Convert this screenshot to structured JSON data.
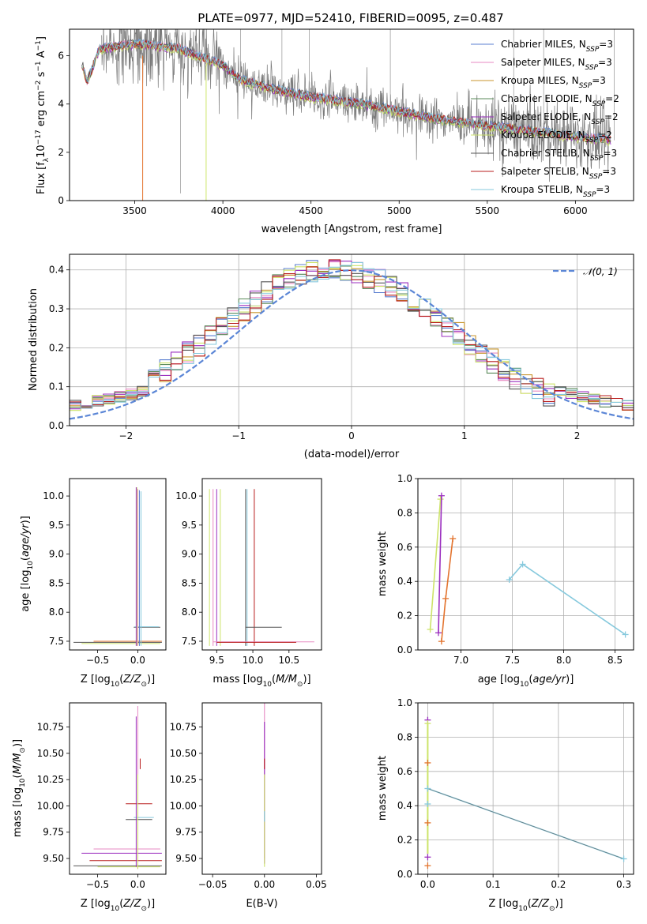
{
  "title": "PLATE=0977, MJD=52410, FIBERID=0095, z=0.487",
  "colors": {
    "Chabrier MILES": "#5b7fd0",
    "Salpeter MILES": "#e78ac3",
    "Kroupa MILES": "#c8962e",
    "Chabrier ELODIE": "#5a8a5a",
    "Salpeter ELODIE": "#9b2fbf",
    "Kroupa ELODIE": "#cde46a",
    "Chabrier STELIB": "#555555",
    "Salpeter STELIB": "#b81c1c",
    "Kroupa STELIB": "#86c9dd",
    "normal": "#5b86d6",
    "orange": "#e3742f"
  },
  "chart_data": [
    {
      "type": "line",
      "panel": "spectrum",
      "xlabel": "wavelength [Angstrom, rest frame]",
      "ylabel": "Flux [f_λ 10^-17 erg cm^-2 s^-1 A^-1]",
      "xlim": [
        3130,
        6330
      ],
      "ylim": [
        0,
        7.1
      ],
      "xticks": [
        3500,
        4000,
        4500,
        5000,
        5500,
        6000
      ],
      "yticks": [
        0,
        2,
        4,
        6
      ],
      "legend_position": "top-right",
      "series": [
        {
          "name": "Chabrier MILES, N_SSP=3"
        },
        {
          "name": "Salpeter MILES, N_SSP=3"
        },
        {
          "name": "Kroupa MILES, N_SSP=3"
        },
        {
          "name": "Chabrier ELODIE, N_SSP=2"
        },
        {
          "name": "Salpeter ELODIE, N_SSP=2"
        },
        {
          "name": "Kroupa ELODIE, N_SSP=2"
        },
        {
          "name": "Chabrier STELIB, N_SSP=3"
        },
        {
          "name": "Salpeter STELIB, N_SSP=3"
        },
        {
          "name": "Kroupa STELIB, N_SSP=3"
        }
      ],
      "continuum_anchors": {
        "x": [
          3200,
          3230,
          3300,
          3500,
          3750,
          4000,
          4100,
          4300,
          4500,
          4800,
          5000,
          5200,
          5500,
          5800,
          6000,
          6200
        ],
        "y": [
          5.7,
          4.9,
          6.3,
          6.5,
          6.3,
          5.6,
          5.0,
          4.6,
          4.3,
          4.0,
          3.7,
          3.4,
          3.1,
          2.85,
          2.65,
          2.5
        ]
      }
    },
    {
      "type": "line",
      "panel": "residuals",
      "xlabel": "(data-model)/error",
      "ylabel": "Normed distribution",
      "xlim": [
        -2.5,
        2.5
      ],
      "ylim": [
        0,
        0.44
      ],
      "xticks": [
        -2,
        -1,
        0,
        1,
        2
      ],
      "yticks": [
        0.0,
        0.1,
        0.2,
        0.3,
        0.4
      ],
      "legend": "𝒩(0, 1)",
      "legend_position": "top-right",
      "grid": true
    },
    {
      "type": "scatter",
      "panel": "age-metallicity",
      "xlabel": "Z [log10(Z/Z⊙)]",
      "ylabel": "age [log10(age/yr)]",
      "xlim": [
        -0.85,
        0.35
      ],
      "ylim": [
        7.35,
        10.3
      ],
      "xticks": [
        -0.5,
        0.0
      ],
      "yticks": [
        7.5,
        8.0,
        8.5,
        9.0,
        9.5,
        10.0
      ]
    },
    {
      "type": "scatter",
      "panel": "age-mass",
      "xlabel": "mass [log10(M/M⊙)]",
      "xlim": [
        9.3,
        10.95
      ],
      "ylim": [
        7.35,
        10.3
      ],
      "xticks": [
        9.5,
        10.0,
        10.5
      ],
      "yticks": [
        7.5,
        8.0,
        8.5,
        9.0,
        9.5,
        10.0
      ]
    },
    {
      "type": "line",
      "panel": "massweight-age",
      "xlabel": "age [log10(age/yr)]",
      "ylabel": "mass weight",
      "xlim": [
        6.58,
        8.68
      ],
      "ylim": [
        0,
        1
      ],
      "xticks": [
        7.0,
        7.5,
        8.0,
        8.5
      ],
      "yticks": [
        0.0,
        0.2,
        0.4,
        0.6,
        0.8,
        1.0
      ],
      "grid": true,
      "series": [
        {
          "x": [
            6.7,
            6.8
          ],
          "y": [
            0.12,
            0.88
          ]
        },
        {
          "x": [
            6.78,
            6.81
          ],
          "y": [
            0.1,
            0.9
          ]
        },
        {
          "x": [
            6.81,
            6.85,
            6.92
          ],
          "y": [
            0.05,
            0.3,
            0.65
          ]
        },
        {
          "x": [
            7.47,
            7.6,
            8.6
          ],
          "y": [
            0.41,
            0.5,
            0.09
          ]
        }
      ]
    },
    {
      "type": "scatter",
      "panel": "mass-metallicity",
      "xlabel": "Z [log10(Z/Z⊙)]",
      "ylabel": "mass [log10(M/M⊙)]",
      "xlim": [
        -0.85,
        0.35
      ],
      "ylim": [
        9.35,
        10.98
      ],
      "xticks": [
        -0.5,
        0.0
      ],
      "yticks": [
        9.5,
        9.75,
        10.0,
        10.25,
        10.5,
        10.75
      ]
    },
    {
      "type": "scatter",
      "panel": "mass-ebv",
      "xlabel": "E(B-V)",
      "xlim": [
        -0.06,
        0.055
      ],
      "ylim": [
        9.35,
        10.98
      ],
      "xticks": [
        -0.05,
        0.0,
        0.05
      ],
      "yticks": [
        9.5,
        9.75,
        10.0,
        10.25,
        10.5,
        10.75
      ]
    },
    {
      "type": "line",
      "panel": "massweight-metallicity",
      "xlabel": "Z [log10(Z/Z⊙)]",
      "ylabel": "mass weight",
      "xlim": [
        -0.015,
        0.315
      ],
      "ylim": [
        0,
        1
      ],
      "xticks": [
        0.0,
        0.1,
        0.2,
        0.3
      ],
      "yticks": [
        0.0,
        0.2,
        0.4,
        0.6,
        0.8,
        1.0
      ],
      "grid": true,
      "series": [
        {
          "x": [
            0,
            0,
            0.3
          ],
          "y": [
            0.88,
            0.5,
            0.09
          ]
        }
      ]
    }
  ]
}
